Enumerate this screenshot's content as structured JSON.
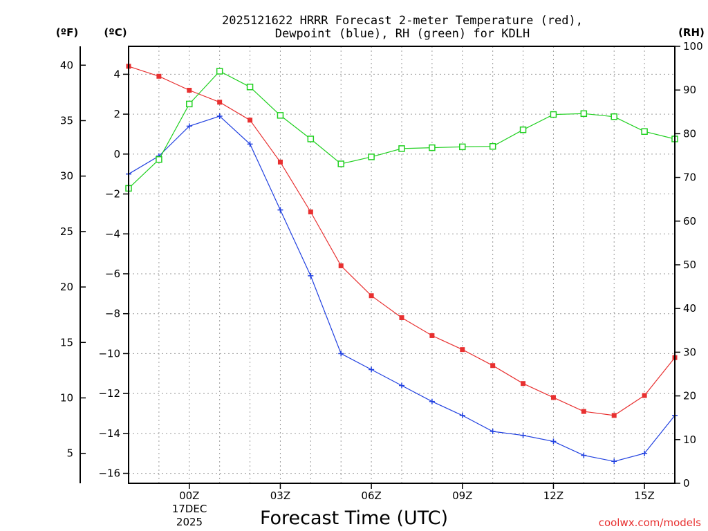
{
  "chart_data": {
    "type": "line",
    "title_line1": "2025121622 HRRR Forecast 2-meter Temperature (red),",
    "title_line2": "Dewpoint (blue), RH (green) for KDLH",
    "unit_f": "(ºF)",
    "unit_c": "(ºC)",
    "unit_rh": "(RH)",
    "xlabel": "Forecast Time (UTC)",
    "credit": "coolwx.com/models",
    "x_ticks": [
      "00Z",
      "03Z",
      "06Z",
      "09Z",
      "12Z",
      "15Z"
    ],
    "x_tick_hours": [
      0,
      3,
      6,
      9,
      12,
      15
    ],
    "date_label_1": "17DEC",
    "date_label_2": "2025",
    "x_range_hours": [
      -2,
      16
    ],
    "ylim_c": [
      -16.5,
      5.4
    ],
    "ylim_f": [
      2.3,
      41.7
    ],
    "ylim_rh": [
      0,
      100
    ],
    "yticks_c": [
      4,
      2,
      0,
      -2,
      -4,
      -6,
      -8,
      -10,
      -12,
      -14,
      -16
    ],
    "yticks_f": [
      40,
      35,
      30,
      25,
      20,
      15,
      10,
      5
    ],
    "yticks_rh": [
      100,
      90,
      80,
      70,
      60,
      50,
      40,
      30,
      20,
      10,
      0
    ],
    "hours": [
      -2,
      -1,
      0,
      1,
      2,
      3,
      4,
      5,
      6,
      7,
      8,
      9,
      10,
      11,
      12,
      13,
      14,
      15,
      16
    ],
    "series": [
      {
        "name": "Temperature",
        "axis": "c",
        "color": "#e83030",
        "marker": "filled-square",
        "values": [
          4.4,
          3.9,
          3.2,
          2.6,
          1.7,
          -0.4,
          -2.9,
          -5.6,
          -7.1,
          -8.2,
          -9.1,
          -9.8,
          -10.6,
          -11.5,
          -12.2,
          -12.9,
          -13.1,
          -12.1,
          -10.2
        ]
      },
      {
        "name": "Dewpoint",
        "axis": "c",
        "color": "#2040e0",
        "marker": "plus",
        "values": [
          -1.0,
          -0.1,
          1.4,
          1.9,
          0.5,
          -2.8,
          -6.1,
          -10.0,
          -10.8,
          -11.6,
          -12.4,
          -13.1,
          -13.9,
          -14.1,
          -14.4,
          -15.1,
          -15.4,
          -15.0,
          -13.1
        ]
      },
      {
        "name": "RH",
        "axis": "rh",
        "color": "#20d020",
        "marker": "open-square",
        "values": [
          67.5,
          74.1,
          86.8,
          94.3,
          90.7,
          84.2,
          78.8,
          73.1,
          74.7,
          76.6,
          76.8,
          77.0,
          77.1,
          80.9,
          84.4,
          84.6,
          83.9,
          80.5,
          78.8
        ]
      }
    ]
  }
}
